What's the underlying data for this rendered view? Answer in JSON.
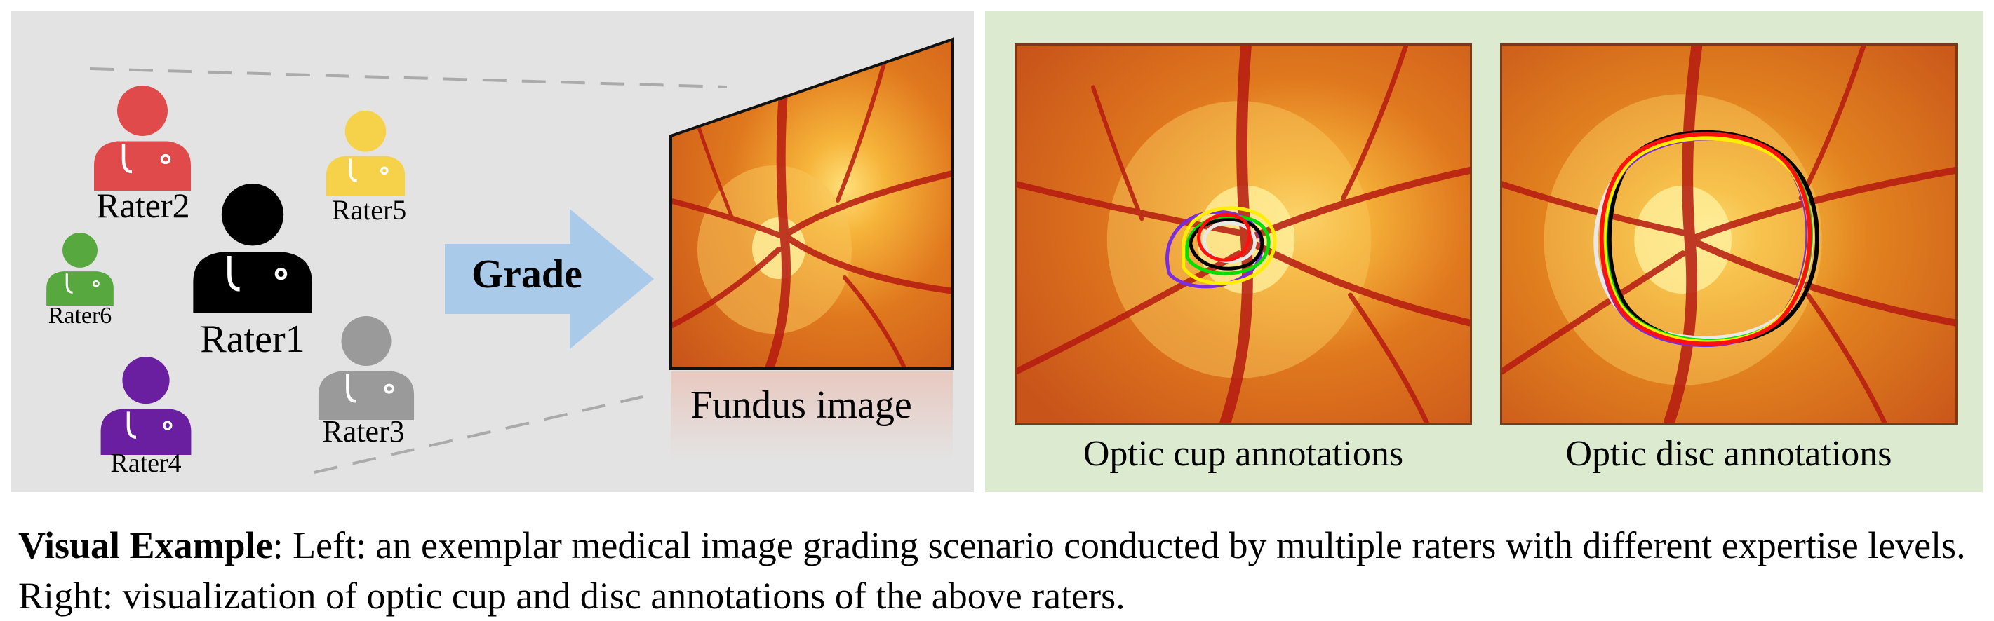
{
  "left": {
    "raters": [
      {
        "label": "Rater1",
        "color": "#000000"
      },
      {
        "label": "Rater2",
        "color": "#e04a4a"
      },
      {
        "label": "Rater3",
        "color": "#9a9a9a"
      },
      {
        "label": "Rater4",
        "color": "#6a1fa0"
      },
      {
        "label": "Rater5",
        "color": "#f5d24a"
      },
      {
        "label": "Rater6",
        "color": "#58a840"
      }
    ],
    "arrow_label": "Grade",
    "arrow_color": "#a9cbe9",
    "image_label": "Fundus image"
  },
  "right": {
    "cup_caption": "Optic cup annotations",
    "disc_caption": "Optic disc annotations",
    "annotation_colors": [
      "#ff1010",
      "#ffee00",
      "#00e000",
      "#000000",
      "#7a2ee0",
      "#e8e8e8"
    ]
  },
  "caption": {
    "bold": "Visual Example",
    "text": ": Left: an exemplar medical image grading scenario conducted by multiple raters with different expertise levels. Right: visualization of optic cup and disc annotations of the above raters."
  }
}
